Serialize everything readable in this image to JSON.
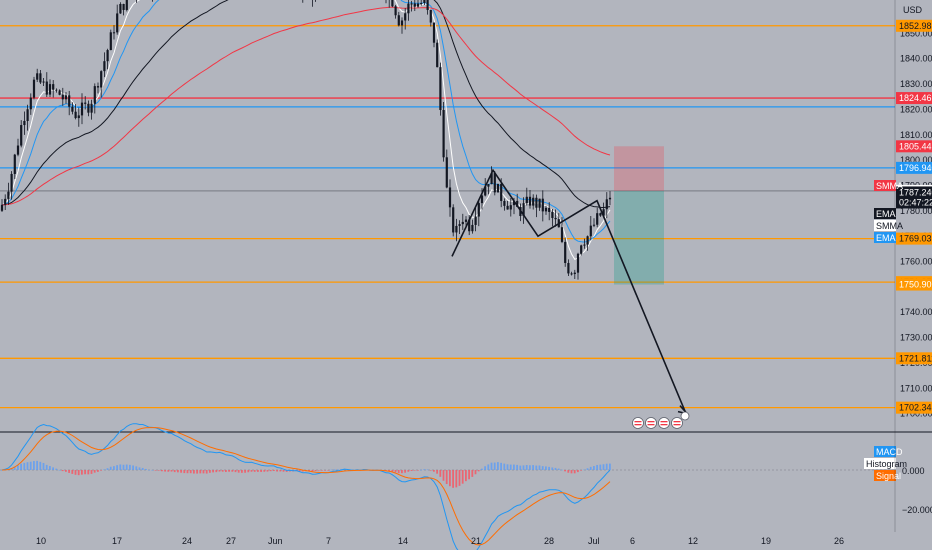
{
  "currency_label": "USD",
  "price_scale": {
    "min": 1695,
    "max": 1860,
    "labels": [
      "1850.000",
      "1840.000",
      "1830.000",
      "1820.000",
      "1810.000",
      "1800.000",
      "1790.000",
      "1780.000",
      "1770.000",
      "1760.000",
      "1750.000",
      "1740.000",
      "1730.000",
      "1720.000",
      "1710.000",
      "1700.000"
    ]
  },
  "time_axis": {
    "labels": [
      "10",
      "17",
      "24",
      "27",
      "Jun",
      "7",
      "14",
      "21",
      "28",
      "Jul",
      "6",
      "12",
      "19",
      "26"
    ]
  },
  "current_price": {
    "value": "1787.240",
    "countdown": "02:47:22",
    "color": "#131722"
  },
  "horizontal_levels": [
    {
      "price": 1852.985,
      "label": "1852.985",
      "color": "#ff9800"
    },
    {
      "price": 1824.469,
      "label": "1824.469",
      "color": "#f23645"
    },
    {
      "price": 1821.0,
      "label": "",
      "color": "#2196f3"
    },
    {
      "price": 1796.94,
      "label": "1796.940",
      "color": "#2196f3"
    },
    {
      "price": 1769.031,
      "label": "1769.031",
      "color": "#ff9800"
    },
    {
      "price": 1751.856,
      "label": "1751.856",
      "color": "#ff9800"
    },
    {
      "price": 1721.811,
      "label": "1721.811",
      "color": "#ff9800"
    },
    {
      "price": 1702.343,
      "label": "1702.343",
      "color": "#ff9800"
    }
  ],
  "price_tags": [
    {
      "price": 1805.441,
      "label": "1805.441",
      "color": "#f23645"
    },
    {
      "price": 1787.854,
      "label": "1787.854",
      "color": "#ffffff"
    },
    {
      "price": 1750.907,
      "label": "1750.907",
      "color": "#ff9800"
    }
  ],
  "indicator_tags": [
    {
      "label": "SMMA",
      "color": "#f23645",
      "text_color": "#ffffff"
    },
    {
      "label": "EMA",
      "color": "#131722",
      "text_color": "#ffffff"
    },
    {
      "label": "SMMA",
      "color": "#ffffff",
      "text_color": "#131722"
    },
    {
      "label": "EMA",
      "color": "#2196f3",
      "text_color": "#ffffff"
    }
  ],
  "macd_panel": {
    "scale_labels": [
      "0.000",
      "−20.000"
    ],
    "tags": [
      {
        "label": "MACD",
        "color": "#2196f3",
        "text_color": "#ffffff"
      },
      {
        "label": "Histogram",
        "color": "#ffffff",
        "text_color": "#131722"
      },
      {
        "label": "Signal",
        "color": "#ff6d00",
        "text_color": "#ffffff"
      }
    ]
  },
  "chart_data": {
    "type": "candlestick",
    "symbol_quote": "USD",
    "x": [
      "10",
      "17",
      "24",
      "27",
      "Jun",
      "7",
      "14",
      "21",
      "28",
      "Jul",
      "6",
      "12",
      "19",
      "26"
    ],
    "ylim": [
      1695,
      1860
    ],
    "support_resistance": [
      1852.985,
      1824.469,
      1796.94,
      1769.031,
      1751.856,
      1721.811,
      1702.343
    ],
    "position": {
      "entry": 1787.854,
      "stop": 1805.441,
      "target": 1750.907
    },
    "projected_path": [
      1762,
      1796,
      1770,
      1784,
      1700
    ],
    "colors": {
      "up": "#2196f3",
      "down": "#f23645",
      "ema_fast": "#2196f3",
      "ema_slow": "#131722",
      "smma": "#f23645",
      "smma2": "#ffffff"
    }
  }
}
